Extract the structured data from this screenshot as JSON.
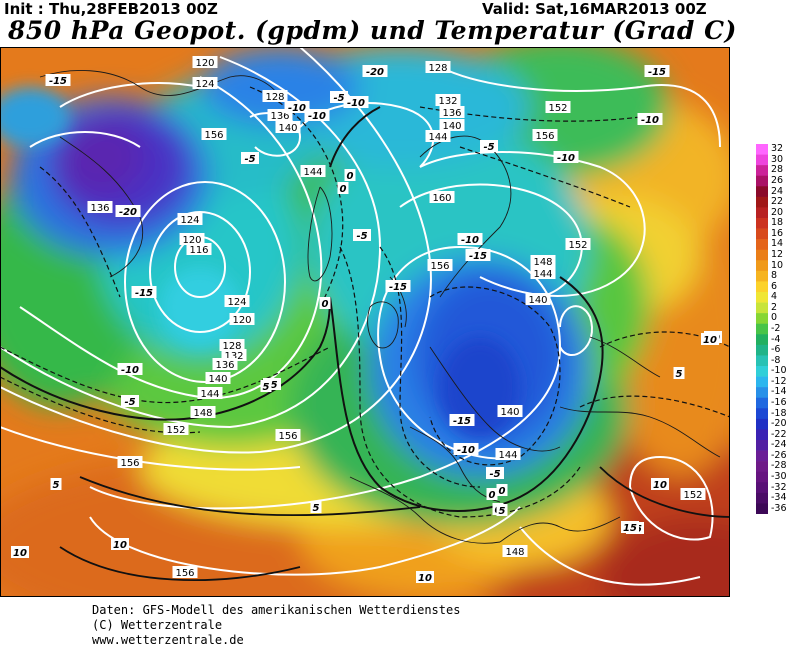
{
  "header": {
    "init": "Init : Thu,28FEB2013 00Z",
    "valid": "Valid: Sat,16MAR2013 00Z",
    "title": "850 hPa Geopot. (gpdm) und Temperatur (Grad C)"
  },
  "legend": {
    "labels": [
      "32",
      "30",
      "28",
      "26",
      "24",
      "22",
      "20",
      "18",
      "16",
      "14",
      "12",
      "10",
      "8",
      "6",
      "4",
      "2",
      "0",
      "-2",
      "-4",
      "-6",
      "-8",
      "-10",
      "-12",
      "-14",
      "-16",
      "-18",
      "-20",
      "-22",
      "-24",
      "-26",
      "-28",
      "-30",
      "-32",
      "-34",
      "-36"
    ],
    "colors": [
      "#ff66ff",
      "#ee44dd",
      "#cc2299",
      "#aa1166",
      "#8b0a2a",
      "#a01818",
      "#b82222",
      "#cc3320",
      "#d84a1c",
      "#e4641a",
      "#ea7e18",
      "#f09a1a",
      "#f6b420",
      "#fcd22a",
      "#f0e634",
      "#c8e43a",
      "#86d634",
      "#48c448",
      "#22b060",
      "#20b488",
      "#28c2b4",
      "#30cfd8",
      "#2cb6ee",
      "#2890e8",
      "#2068e0",
      "#1c48d4",
      "#2030c4",
      "#3a22b4",
      "#5220a2",
      "#6a1e96",
      "#6e1a88",
      "#661480",
      "#581076",
      "#4a0c66",
      "#3c0856"
    ]
  },
  "map_labels": {
    "geopotential": [
      "120",
      "124",
      "128",
      "128",
      "132",
      "136",
      "136",
      "140",
      "140",
      "144",
      "144",
      "152",
      "156",
      "160",
      "156",
      "148",
      "144",
      "152",
      "140",
      "136",
      "124",
      "120",
      "116",
      "124",
      "120",
      "128",
      "132",
      "136",
      "140",
      "144",
      "148",
      "152",
      "156",
      "156",
      "156",
      "140",
      "144",
      "148",
      "152",
      "156"
    ],
    "temperature": [
      "-15",
      "-20",
      "-15",
      "-10",
      "-5",
      "-10",
      "-10",
      "-15",
      "-20",
      "-5",
      "0",
      "0",
      "-5",
      "-5",
      "-10",
      "-10",
      "-15",
      "-15",
      "-10",
      "-5",
      "-15",
      "-5",
      "0",
      "0",
      "-5",
      "0",
      "5",
      "5",
      "10",
      "10",
      "10",
      "5",
      "15",
      "10",
      "10",
      "5",
      "0",
      "5",
      "10",
      "15",
      "-10",
      "-10"
    ]
  },
  "footer": {
    "line1": "Daten: GFS-Modell des amerikanischen Wetterdienstes",
    "line2": "(C) Wetterzentrale",
    "line3": "www.wetterzentrale.de"
  }
}
